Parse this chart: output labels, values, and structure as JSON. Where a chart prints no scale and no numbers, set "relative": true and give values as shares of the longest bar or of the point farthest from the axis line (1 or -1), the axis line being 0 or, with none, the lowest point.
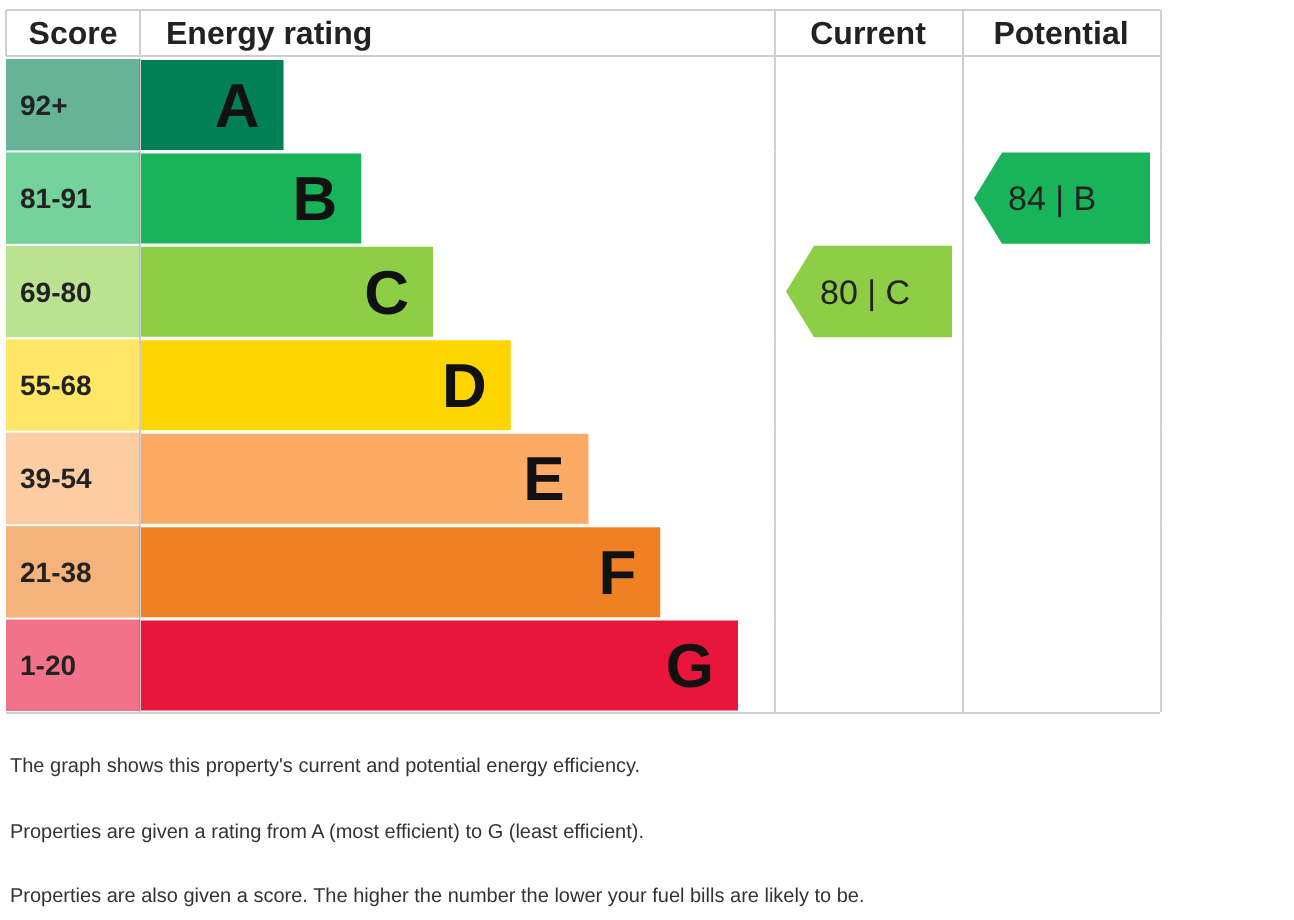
{
  "chart_data": [
    {
      "type": "bar",
      "orientation": "horizontal",
      "relative": true,
      "categories": [
        "92+",
        "81-91",
        "69-80",
        "55-68",
        "39-54",
        "21-38",
        "1-20"
      ],
      "values": [
        0.24,
        0.37,
        0.49,
        0.62,
        0.75,
        0.87,
        1
      ],
      "colors": [
        "#008054",
        "#19b459",
        "#8dce46",
        "#ffd500",
        "#fcaa65",
        "#ef8023",
        "#e9153b"
      ],
      "ylabel": "Score",
      "xlabel": "Energy rating",
      "annotations": [
        {
          "text": "A",
          "x": 0.24,
          "y": "92+"
        },
        {
          "text": "B",
          "x": 0.37,
          "y": "81-91"
        },
        {
          "text": "C",
          "x": 0.49,
          "y": "69-80"
        },
        {
          "text": "D",
          "x": 0.62,
          "y": "55-68"
        },
        {
          "text": "E",
          "x": 0.75,
          "y": "39-54"
        },
        {
          "text": "F",
          "x": 0.87,
          "y": "21-38"
        },
        {
          "text": "G",
          "x": 1,
          "y": "1-20"
        },
        "The graph shows this property's current and potential energy efficiency.",
        "Properties are given a rating from A (most efficient) to G (least efficient).",
        "Properties are also given a score. The higher the number the lower your fuel bills are likely to be."
      ]
    },
    {
      "type": "heatmap",
      "categories": [
        "Current",
        "Potential"
      ],
      "y_categories": [
        "92+",
        "81-91",
        "69-80",
        "55-68",
        "39-54",
        "21-38",
        "1-20"
      ],
      "cells": [
        [
          null,
          null
        ],
        [
          null,
          84
        ],
        [
          80,
          null
        ],
        [
          null,
          null
        ],
        [
          null,
          null
        ],
        [
          null,
          null
        ],
        [
          null,
          null
        ]
      ],
      "cell_labels": [
        [
          null,
          null
        ],
        [
          null,
          "84 | B"
        ],
        [
          "80 | C",
          null
        ],
        [
          null,
          null
        ],
        [
          null,
          null
        ],
        [
          null,
          null
        ],
        [
          null,
          null
        ]
      ],
      "tick_labels": "x"
    }
  ]
}
